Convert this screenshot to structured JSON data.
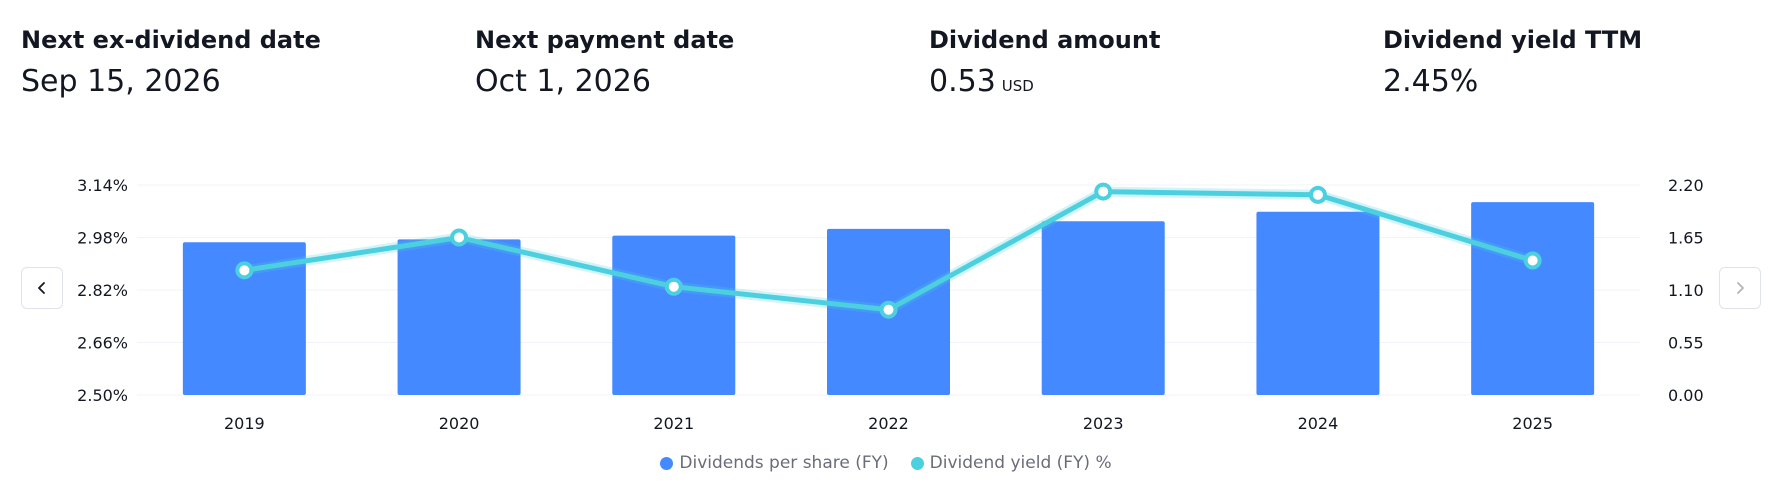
{
  "stats": [
    {
      "label": "Next ex-dividend date",
      "value": "Sep 15, 2026",
      "unit": ""
    },
    {
      "label": "Next payment date",
      "value": "Oct 1, 2026",
      "unit": ""
    },
    {
      "label": "Dividend amount",
      "value": "0.53",
      "unit": "USD"
    },
    {
      "label": "Dividend yield TTM",
      "value": "2.45%",
      "unit": ""
    }
  ],
  "nav": {
    "prev_icon": "chevron-left-icon",
    "next_icon": "chevron-right-icon"
  },
  "chart_data": {
    "type": "bar",
    "categories": [
      "2019",
      "2020",
      "2021",
      "2022",
      "2023",
      "2024",
      "2025"
    ],
    "series": [
      {
        "name": "Dividends per share (FY)",
        "type": "bar",
        "axis": "right",
        "values": [
          1.6,
          1.63,
          1.67,
          1.74,
          1.82,
          1.92,
          2.02
        ],
        "color": "#4489ff"
      },
      {
        "name": "Dividend yield (FY) %",
        "type": "line",
        "axis": "left",
        "values": [
          2.88,
          2.98,
          2.83,
          2.76,
          3.12,
          3.11,
          2.91
        ],
        "color": "#4cd0e0"
      }
    ],
    "left_axis": {
      "ticks": [
        "3.14%",
        "2.98%",
        "2.82%",
        "2.66%",
        "2.50%"
      ],
      "range": [
        2.5,
        3.14
      ]
    },
    "right_axis": {
      "ticks": [
        "2.20",
        "1.65",
        "1.10",
        "0.55",
        "0.00"
      ],
      "range": [
        0,
        2.2
      ]
    },
    "grid": true,
    "legend_position": "bottom-center"
  }
}
